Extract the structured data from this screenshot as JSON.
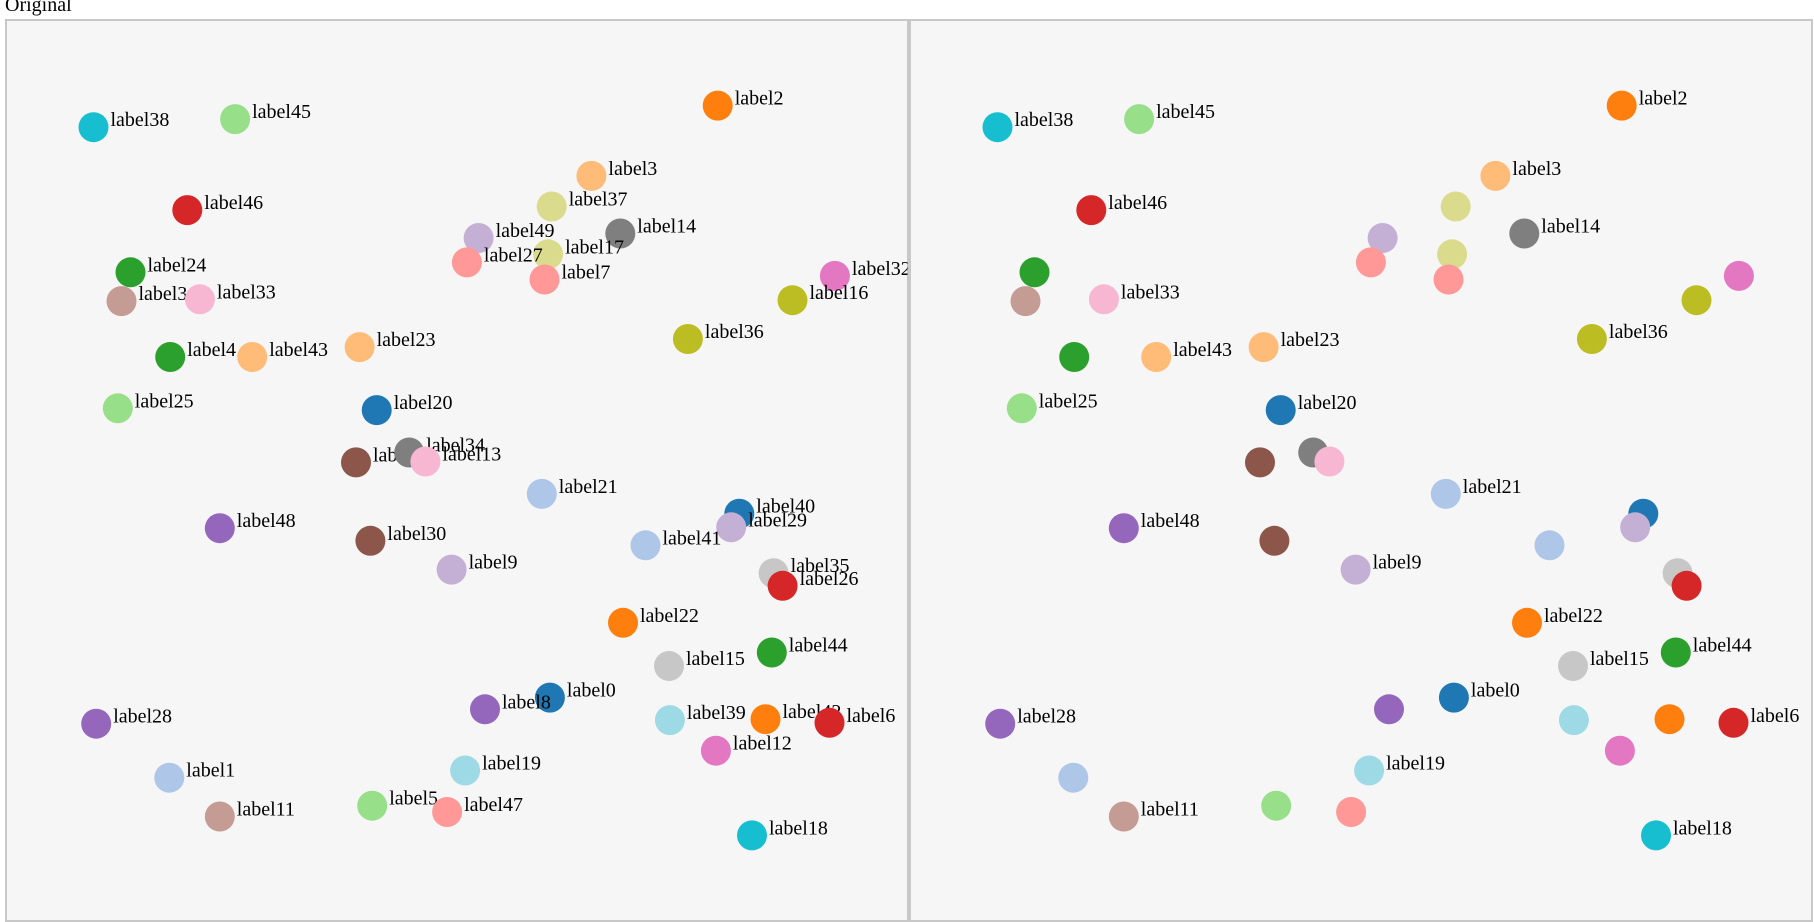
{
  "title": "Original",
  "chart_data": [
    {
      "type": "scatter",
      "panel": "left",
      "xlim": [
        0,
        1
      ],
      "ylim": [
        0,
        1
      ],
      "points": [
        {
          "label": "label38",
          "x": 0.097,
          "y": 0.881,
          "color": "#17becf",
          "label_shown": true
        },
        {
          "label": "label45",
          "x": 0.254,
          "y": 0.89,
          "color": "#98df8a",
          "label_shown": true
        },
        {
          "label": "label2",
          "x": 0.789,
          "y": 0.905,
          "color": "#ff7f0e",
          "label_shown": true
        },
        {
          "label": "label46",
          "x": 0.201,
          "y": 0.789,
          "color": "#d62728",
          "label_shown": true
        },
        {
          "label": "label3",
          "x": 0.649,
          "y": 0.827,
          "color": "#ffbb78",
          "label_shown": true
        },
        {
          "label": "label37",
          "x": 0.605,
          "y": 0.793,
          "color": "#dbdb8d",
          "label_shown": true
        },
        {
          "label": "label14",
          "x": 0.681,
          "y": 0.763,
          "color": "#7f7f7f",
          "label_shown": true
        },
        {
          "label": "label49",
          "x": 0.524,
          "y": 0.758,
          "color": "#c5b0d5",
          "label_shown": true
        },
        {
          "label": "label17",
          "x": 0.601,
          "y": 0.74,
          "color": "#dbdb8d",
          "label_shown": true
        },
        {
          "label": "label27",
          "x": 0.511,
          "y": 0.731,
          "color": "#ff9896",
          "label_shown": true
        },
        {
          "label": "label7",
          "x": 0.597,
          "y": 0.712,
          "color": "#ff9896",
          "label_shown": true
        },
        {
          "label": "label24",
          "x": 0.138,
          "y": 0.72,
          "color": "#2ca02c",
          "label_shown": true
        },
        {
          "label": "label31",
          "x": 0.128,
          "y": 0.688,
          "color": "#c49c94",
          "label_shown": true
        },
        {
          "label": "label33",
          "x": 0.215,
          "y": 0.69,
          "color": "#f7b6d2",
          "label_shown": true
        },
        {
          "label": "label32",
          "x": 0.919,
          "y": 0.716,
          "color": "#e377c2",
          "label_shown": true
        },
        {
          "label": "label16",
          "x": 0.872,
          "y": 0.689,
          "color": "#bcbd22",
          "label_shown": true
        },
        {
          "label": "label36",
          "x": 0.756,
          "y": 0.646,
          "color": "#bcbd22",
          "label_shown": true
        },
        {
          "label": "label4",
          "x": 0.182,
          "y": 0.626,
          "color": "#2ca02c",
          "label_shown": true
        },
        {
          "label": "label43",
          "x": 0.273,
          "y": 0.626,
          "color": "#ffbb78",
          "label_shown": true
        },
        {
          "label": "label23",
          "x": 0.392,
          "y": 0.637,
          "color": "#ffbb78",
          "label_shown": true
        },
        {
          "label": "label25",
          "x": 0.124,
          "y": 0.569,
          "color": "#98df8a",
          "label_shown": true
        },
        {
          "label": "label20",
          "x": 0.411,
          "y": 0.567,
          "color": "#1f77b4",
          "label_shown": true
        },
        {
          "label": "label10",
          "x": 0.388,
          "y": 0.509,
          "color": "#8c564b",
          "label_shown": true
        },
        {
          "label": "label34",
          "x": 0.447,
          "y": 0.52,
          "color": "#7f7f7f",
          "label_shown": true
        },
        {
          "label": "label13",
          "x": 0.465,
          "y": 0.51,
          "color": "#f7b6d2",
          "label_shown": true
        },
        {
          "label": "label21",
          "x": 0.594,
          "y": 0.474,
          "color": "#aec7e8",
          "label_shown": true
        },
        {
          "label": "label40",
          "x": 0.813,
          "y": 0.452,
          "color": "#1f77b4",
          "label_shown": true
        },
        {
          "label": "label29",
          "x": 0.804,
          "y": 0.437,
          "color": "#c5b0d5",
          "label_shown": true
        },
        {
          "label": "label41",
          "x": 0.709,
          "y": 0.417,
          "color": "#aec7e8",
          "label_shown": true
        },
        {
          "label": "label48",
          "x": 0.237,
          "y": 0.436,
          "color": "#9467bd",
          "label_shown": true
        },
        {
          "label": "label30",
          "x": 0.404,
          "y": 0.422,
          "color": "#8c564b",
          "label_shown": true
        },
        {
          "label": "label9",
          "x": 0.494,
          "y": 0.39,
          "color": "#c5b0d5",
          "label_shown": true
        },
        {
          "label": "label35",
          "x": 0.851,
          "y": 0.386,
          "color": "#c7c7c7",
          "label_shown": true
        },
        {
          "label": "label26",
          "x": 0.861,
          "y": 0.372,
          "color": "#d62728",
          "label_shown": true
        },
        {
          "label": "label22",
          "x": 0.684,
          "y": 0.331,
          "color": "#ff7f0e",
          "label_shown": true
        },
        {
          "label": "label44",
          "x": 0.849,
          "y": 0.298,
          "color": "#2ca02c",
          "label_shown": true
        },
        {
          "label": "label15",
          "x": 0.735,
          "y": 0.283,
          "color": "#c7c7c7",
          "label_shown": true
        },
        {
          "label": "label0",
          "x": 0.603,
          "y": 0.248,
          "color": "#1f77b4",
          "label_shown": true
        },
        {
          "label": "label8",
          "x": 0.531,
          "y": 0.235,
          "color": "#9467bd",
          "label_shown": true
        },
        {
          "label": "label39",
          "x": 0.736,
          "y": 0.223,
          "color": "#9edae5",
          "label_shown": true
        },
        {
          "label": "label42",
          "x": 0.842,
          "y": 0.224,
          "color": "#ff7f0e",
          "label_shown": true
        },
        {
          "label": "label6",
          "x": 0.913,
          "y": 0.22,
          "color": "#d62728",
          "label_shown": true
        },
        {
          "label": "label12",
          "x": 0.787,
          "y": 0.189,
          "color": "#e377c2",
          "label_shown": true
        },
        {
          "label": "label28",
          "x": 0.1,
          "y": 0.219,
          "color": "#9467bd",
          "label_shown": true
        },
        {
          "label": "label19",
          "x": 0.509,
          "y": 0.167,
          "color": "#9edae5",
          "label_shown": true
        },
        {
          "label": "label1",
          "x": 0.181,
          "y": 0.159,
          "color": "#aec7e8",
          "label_shown": true
        },
        {
          "label": "label5",
          "x": 0.406,
          "y": 0.128,
          "color": "#98df8a",
          "label_shown": true
        },
        {
          "label": "label47",
          "x": 0.489,
          "y": 0.121,
          "color": "#ff9896",
          "label_shown": true
        },
        {
          "label": "label11",
          "x": 0.237,
          "y": 0.116,
          "color": "#c49c94",
          "label_shown": true
        },
        {
          "label": "label18",
          "x": 0.827,
          "y": 0.095,
          "color": "#17becf",
          "label_shown": true
        }
      ]
    },
    {
      "type": "scatter",
      "panel": "right",
      "xlim": [
        0,
        1
      ],
      "ylim": [
        0,
        1
      ],
      "points": [
        {
          "label": "label38",
          "x": 0.097,
          "y": 0.881,
          "color": "#17becf",
          "label_shown": true
        },
        {
          "label": "label45",
          "x": 0.254,
          "y": 0.89,
          "color": "#98df8a",
          "label_shown": true
        },
        {
          "label": "label2",
          "x": 0.789,
          "y": 0.905,
          "color": "#ff7f0e",
          "label_shown": true
        },
        {
          "label": "label46",
          "x": 0.201,
          "y": 0.789,
          "color": "#d62728",
          "label_shown": true
        },
        {
          "label": "label3",
          "x": 0.649,
          "y": 0.827,
          "color": "#ffbb78",
          "label_shown": true
        },
        {
          "label": "label37",
          "x": 0.605,
          "y": 0.793,
          "color": "#dbdb8d",
          "label_shown": false
        },
        {
          "label": "label14",
          "x": 0.681,
          "y": 0.763,
          "color": "#7f7f7f",
          "label_shown": true
        },
        {
          "label": "label49",
          "x": 0.524,
          "y": 0.758,
          "color": "#c5b0d5",
          "label_shown": false
        },
        {
          "label": "label17",
          "x": 0.601,
          "y": 0.74,
          "color": "#dbdb8d",
          "label_shown": false
        },
        {
          "label": "label27",
          "x": 0.511,
          "y": 0.731,
          "color": "#ff9896",
          "label_shown": false
        },
        {
          "label": "label7",
          "x": 0.597,
          "y": 0.712,
          "color": "#ff9896",
          "label_shown": false
        },
        {
          "label": "label24",
          "x": 0.138,
          "y": 0.72,
          "color": "#2ca02c",
          "label_shown": false
        },
        {
          "label": "label31",
          "x": 0.128,
          "y": 0.688,
          "color": "#c49c94",
          "label_shown": false
        },
        {
          "label": "label33",
          "x": 0.215,
          "y": 0.69,
          "color": "#f7b6d2",
          "label_shown": true
        },
        {
          "label": "label32",
          "x": 0.919,
          "y": 0.716,
          "color": "#e377c2",
          "label_shown": false
        },
        {
          "label": "label16",
          "x": 0.872,
          "y": 0.689,
          "color": "#bcbd22",
          "label_shown": false
        },
        {
          "label": "label36",
          "x": 0.756,
          "y": 0.646,
          "color": "#bcbd22",
          "label_shown": true
        },
        {
          "label": "label4",
          "x": 0.182,
          "y": 0.626,
          "color": "#2ca02c",
          "label_shown": false
        },
        {
          "label": "label43",
          "x": 0.273,
          "y": 0.626,
          "color": "#ffbb78",
          "label_shown": true
        },
        {
          "label": "label23",
          "x": 0.392,
          "y": 0.637,
          "color": "#ffbb78",
          "label_shown": true
        },
        {
          "label": "label25",
          "x": 0.124,
          "y": 0.569,
          "color": "#98df8a",
          "label_shown": true
        },
        {
          "label": "label20",
          "x": 0.411,
          "y": 0.567,
          "color": "#1f77b4",
          "label_shown": true
        },
        {
          "label": "label10",
          "x": 0.388,
          "y": 0.509,
          "color": "#8c564b",
          "label_shown": false
        },
        {
          "label": "label34",
          "x": 0.447,
          "y": 0.52,
          "color": "#7f7f7f",
          "label_shown": false
        },
        {
          "label": "label13",
          "x": 0.465,
          "y": 0.51,
          "color": "#f7b6d2",
          "label_shown": false
        },
        {
          "label": "label21",
          "x": 0.594,
          "y": 0.474,
          "color": "#aec7e8",
          "label_shown": true
        },
        {
          "label": "label40",
          "x": 0.813,
          "y": 0.452,
          "color": "#1f77b4",
          "label_shown": false
        },
        {
          "label": "label29",
          "x": 0.804,
          "y": 0.437,
          "color": "#c5b0d5",
          "label_shown": false
        },
        {
          "label": "label41",
          "x": 0.709,
          "y": 0.417,
          "color": "#aec7e8",
          "label_shown": false
        },
        {
          "label": "label48",
          "x": 0.237,
          "y": 0.436,
          "color": "#9467bd",
          "label_shown": true
        },
        {
          "label": "label30",
          "x": 0.404,
          "y": 0.422,
          "color": "#8c564b",
          "label_shown": false
        },
        {
          "label": "label9",
          "x": 0.494,
          "y": 0.39,
          "color": "#c5b0d5",
          "label_shown": true
        },
        {
          "label": "label35",
          "x": 0.851,
          "y": 0.386,
          "color": "#c7c7c7",
          "label_shown": false
        },
        {
          "label": "label26",
          "x": 0.861,
          "y": 0.372,
          "color": "#d62728",
          "label_shown": false
        },
        {
          "label": "label22",
          "x": 0.684,
          "y": 0.331,
          "color": "#ff7f0e",
          "label_shown": true
        },
        {
          "label": "label44",
          "x": 0.849,
          "y": 0.298,
          "color": "#2ca02c",
          "label_shown": true
        },
        {
          "label": "label15",
          "x": 0.735,
          "y": 0.283,
          "color": "#c7c7c7",
          "label_shown": true
        },
        {
          "label": "label0",
          "x": 0.603,
          "y": 0.248,
          "color": "#1f77b4",
          "label_shown": true
        },
        {
          "label": "label8",
          "x": 0.531,
          "y": 0.235,
          "color": "#9467bd",
          "label_shown": false
        },
        {
          "label": "label39",
          "x": 0.736,
          "y": 0.223,
          "color": "#9edae5",
          "label_shown": false
        },
        {
          "label": "label42",
          "x": 0.842,
          "y": 0.224,
          "color": "#ff7f0e",
          "label_shown": false
        },
        {
          "label": "label6",
          "x": 0.913,
          "y": 0.22,
          "color": "#d62728",
          "label_shown": true
        },
        {
          "label": "label12",
          "x": 0.787,
          "y": 0.189,
          "color": "#e377c2",
          "label_shown": false
        },
        {
          "label": "label28",
          "x": 0.1,
          "y": 0.219,
          "color": "#9467bd",
          "label_shown": true
        },
        {
          "label": "label19",
          "x": 0.509,
          "y": 0.167,
          "color": "#9edae5",
          "label_shown": true
        },
        {
          "label": "label1",
          "x": 0.181,
          "y": 0.159,
          "color": "#aec7e8",
          "label_shown": false
        },
        {
          "label": "label5",
          "x": 0.406,
          "y": 0.128,
          "color": "#98df8a",
          "label_shown": false
        },
        {
          "label": "label47",
          "x": 0.489,
          "y": 0.121,
          "color": "#ff9896",
          "label_shown": false
        },
        {
          "label": "label11",
          "x": 0.237,
          "y": 0.116,
          "color": "#c49c94",
          "label_shown": true
        },
        {
          "label": "label18",
          "x": 0.827,
          "y": 0.095,
          "color": "#17becf",
          "label_shown": true
        }
      ]
    }
  ]
}
